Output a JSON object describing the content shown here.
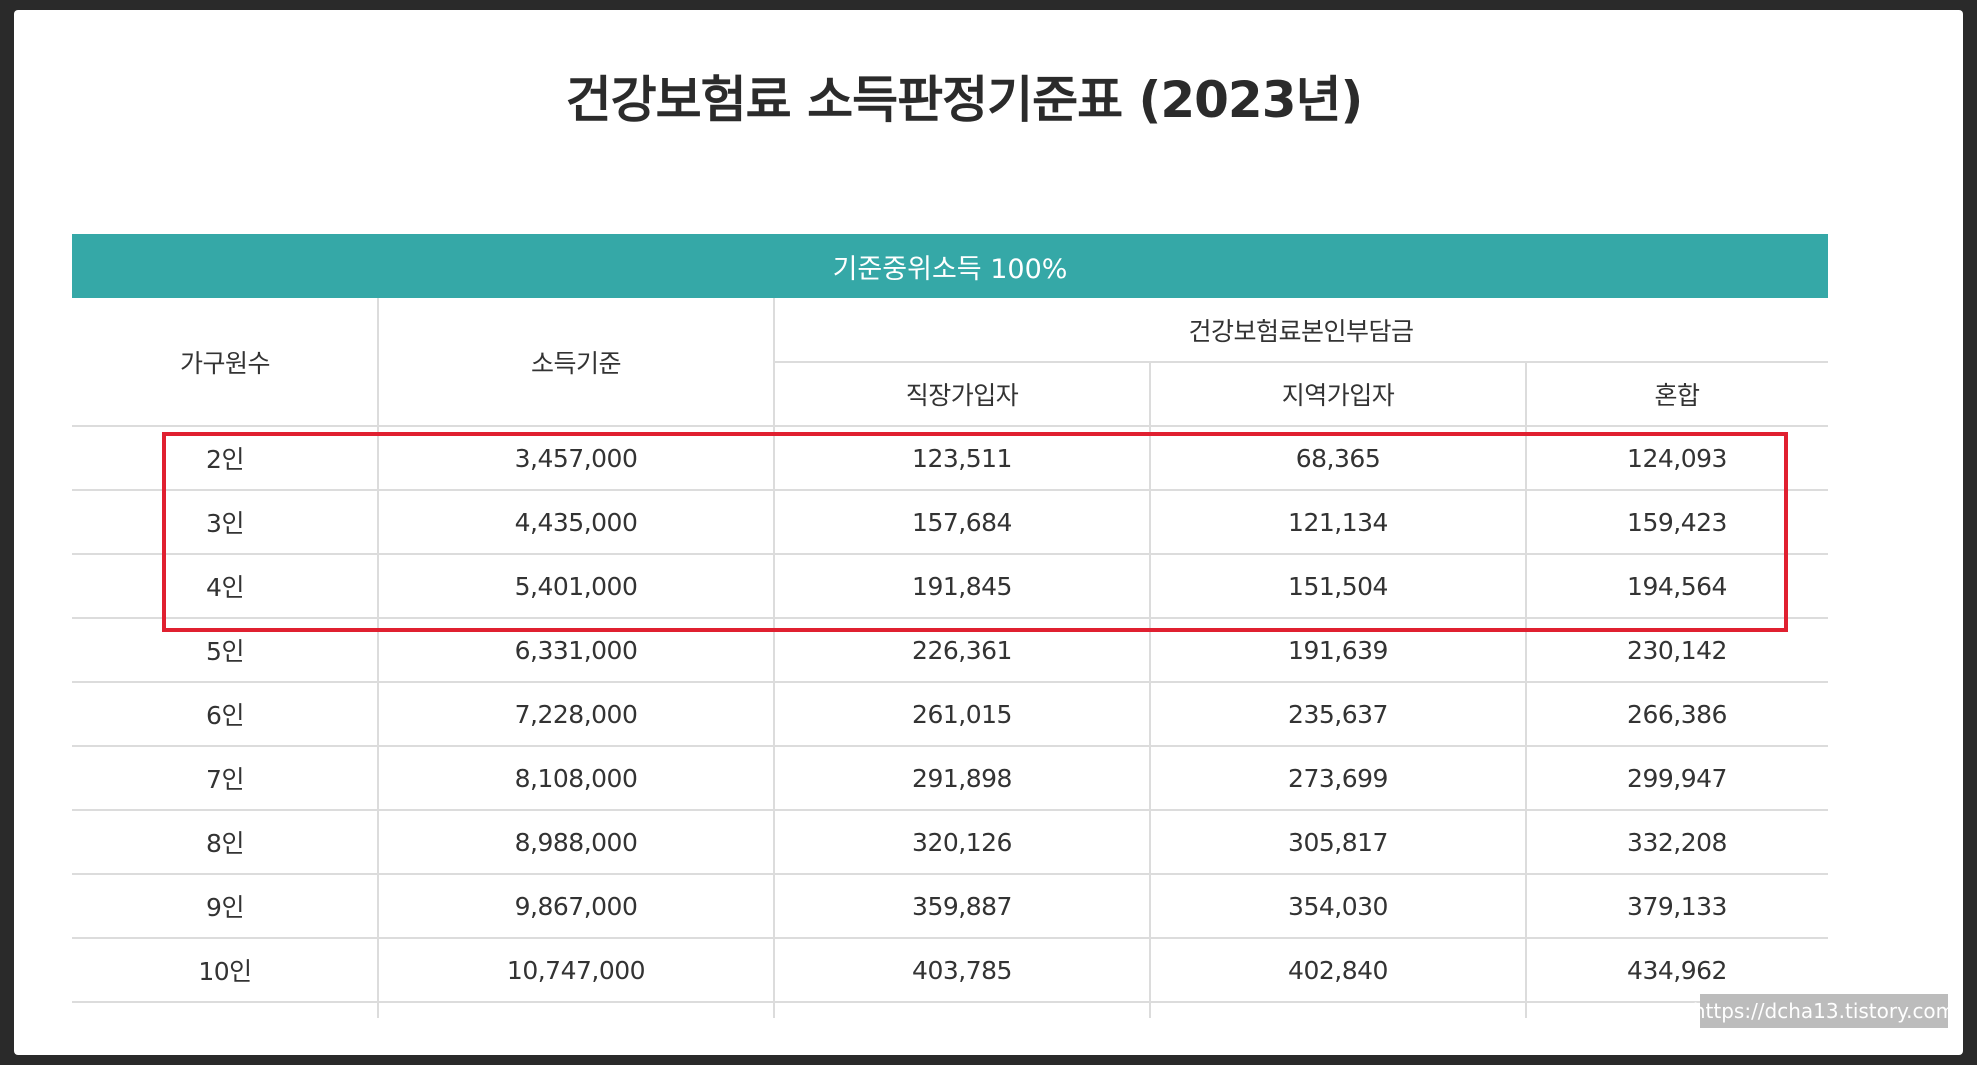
{
  "title": "건강보험료 소득판정기준표 (2023년)",
  "banner": "기준중위소득 100%",
  "headers": {
    "household": "가구원수",
    "income": "소득기준",
    "group": "건강보험료본인부담금",
    "employee": "직장가입자",
    "regional": "지역가입자",
    "mixed": "혼합"
  },
  "rows": [
    [
      "2인",
      "3,457,000",
      "123,511",
      "68,365",
      "124,093"
    ],
    [
      "3인",
      "4,435,000",
      "157,684",
      "121,134",
      "159,423"
    ],
    [
      "4인",
      "5,401,000",
      "191,845",
      "151,504",
      "194,564"
    ],
    [
      "5인",
      "6,331,000",
      "226,361",
      "191,639",
      "230,142"
    ],
    [
      "6인",
      "7,228,000",
      "261,015",
      "235,637",
      "266,386"
    ],
    [
      "7인",
      "8,108,000",
      "291,898",
      "273,699",
      "299,947"
    ],
    [
      "8인",
      "8,988,000",
      "320,126",
      "305,817",
      "332,208"
    ],
    [
      "9인",
      "9,867,000",
      "359,887",
      "354,030",
      "379,133"
    ],
    [
      "10인",
      "10,747,000",
      "403,785",
      "402,840",
      "434,962"
    ]
  ],
  "highlight_color": "#e02030",
  "banner_color": "#35a8a7",
  "watermark": "https://dcha13.tistory.com"
}
